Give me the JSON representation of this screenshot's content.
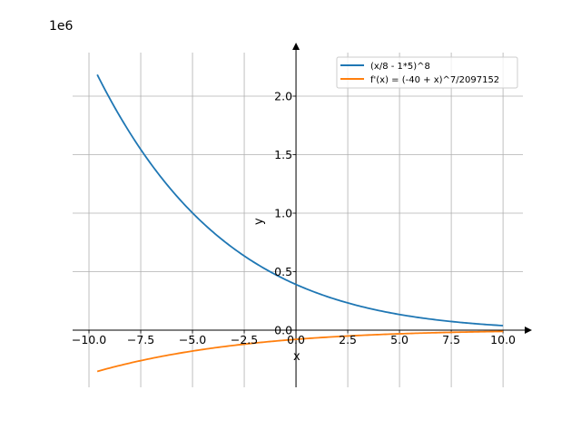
{
  "chart_data": {
    "type": "line",
    "title": "",
    "xlabel": "x",
    "ylabel": "y",
    "y_offset_label": "1e6",
    "xlim": [
      -10.79,
      10.96
    ],
    "ylim": [
      -0.488,
      2.372
    ],
    "y_scale": 1000000,
    "grid": true,
    "legend_placement": "top-right",
    "x_ticks": [
      -10,
      -7.5,
      -5,
      -2.5,
      0,
      2.5,
      5,
      7.5,
      10
    ],
    "x_tick_labels": [
      "−10.0",
      "−7.5",
      "−5.0",
      "−2.5",
      "0.0",
      "2.5",
      "5.0",
      "7.5",
      "10.0"
    ],
    "y_ticks": [
      0,
      0.5,
      1.0,
      1.5,
      2.0
    ],
    "y_tick_labels": [
      "0.0",
      "0.5",
      "1.0",
      "1.5",
      "2.0"
    ],
    "x_range": [
      -9.6,
      10
    ],
    "series": [
      {
        "name": "(x/8 - 1*5)^8",
        "expr": "f",
        "color": "#1f77b4"
      },
      {
        "name": "f'(x) = (-40 + x)^7/2097152",
        "expr": "df",
        "color": "#ff7f0e"
      }
    ]
  }
}
